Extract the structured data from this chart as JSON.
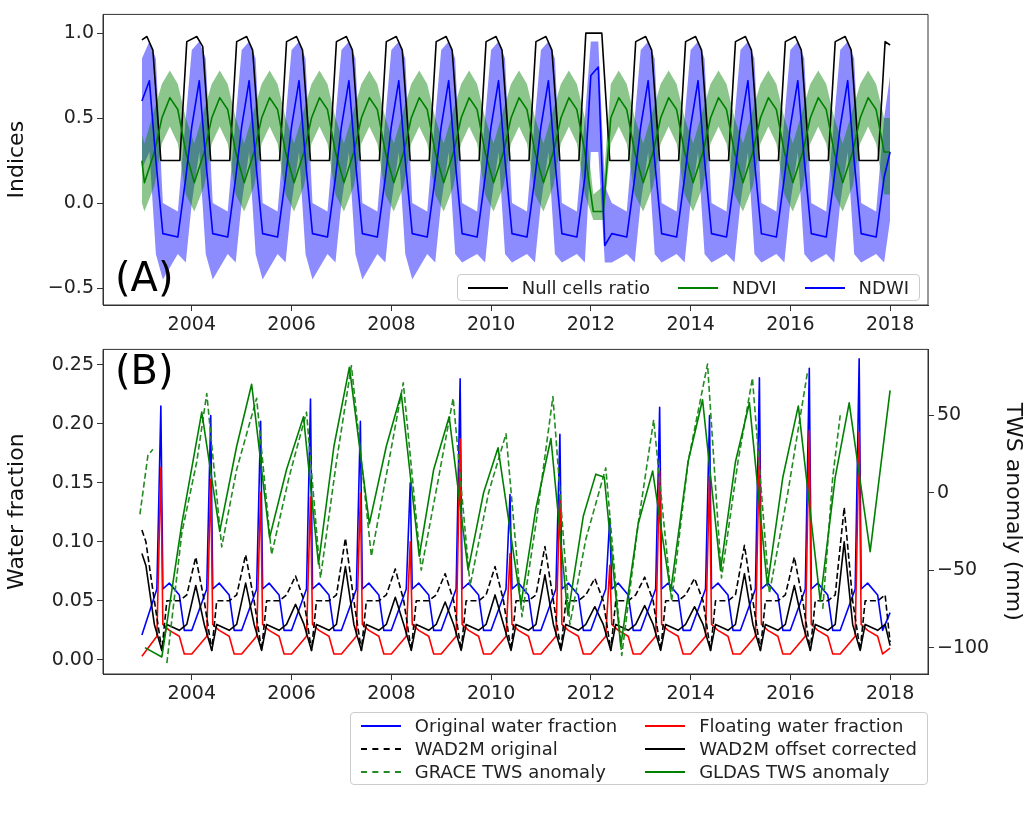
{
  "chart_data": [
    {
      "type": "line",
      "ylabel": "Indices",
      "xlim": [
        2002.22,
        2018.76
      ],
      "ylim": [
        -0.6,
        1.11
      ],
      "xticks": [
        2004,
        2006,
        2008,
        2010,
        2012,
        2014,
        2016,
        2018
      ],
      "yticks": [
        {
          "value": -0.5,
          "label": "−0.5"
        },
        {
          "value": 0,
          "label": "0.0"
        },
        {
          "value": 0.5,
          "label": "0.5"
        },
        {
          "value": 1,
          "label": "1.0"
        }
      ],
      "legend": "lower right",
      "annotations": [
        "(A)"
      ],
      "series": [
        {
          "name": "Null cells ratio",
          "color": "#000000",
          "x": [
            2003,
            2003.1,
            2003.22,
            2003.38,
            2003.76,
            2003.9,
            2004.1,
            2004.22,
            2004.38,
            2004.76,
            2004.9,
            2005.1,
            2005.22,
            2005.38,
            2005.76,
            2005.9,
            2006.1,
            2006.22,
            2006.38,
            2006.76,
            2006.9,
            2007.1,
            2007.22,
            2007.38,
            2007.76,
            2007.9,
            2008.1,
            2008.22,
            2008.38,
            2008.76,
            2008.9,
            2009.1,
            2009.22,
            2009.38,
            2009.76,
            2009.9,
            2010.1,
            2010.22,
            2010.38,
            2010.76,
            2010.9,
            2011.1,
            2011.22,
            2011.38,
            2011.76,
            2011.9,
            2012.1,
            2012.22,
            2012.38,
            2012.76,
            2012.9,
            2013.1,
            2013.22,
            2013.38,
            2013.76,
            2013.9,
            2014.1,
            2014.22,
            2014.38,
            2014.76,
            2014.9,
            2015.1,
            2015.22,
            2015.38,
            2015.76,
            2015.9,
            2016.1,
            2016.22,
            2016.38,
            2016.76,
            2016.9,
            2017.1,
            2017.22,
            2017.38,
            2017.76,
            2017.9,
            2018
          ],
          "values": [
            0.96,
            0.98,
            0.9,
            0.25,
            0.25,
            0.95,
            0.98,
            0.92,
            0.25,
            0.25,
            0.95,
            0.98,
            0.9,
            0.25,
            0.25,
            0.95,
            0.98,
            0.9,
            0.25,
            0.25,
            0.95,
            0.98,
            0.9,
            0.25,
            0.25,
            0.95,
            0.98,
            0.9,
            0.25,
            0.25,
            0.95,
            0.98,
            0.9,
            0.25,
            0.25,
            0.95,
            0.98,
            0.9,
            0.25,
            0.25,
            0.95,
            0.98,
            0.9,
            0.25,
            0.25,
            1.0,
            1.0,
            1.0,
            0.25,
            0.25,
            0.95,
            0.98,
            0.9,
            0.25,
            0.25,
            0.95,
            0.98,
            0.9,
            0.25,
            0.25,
            0.95,
            0.98,
            0.9,
            0.25,
            0.25,
            0.95,
            0.98,
            0.9,
            0.25,
            0.25,
            0.95,
            0.98,
            0.9,
            0.25,
            0.25,
            0.95,
            0.93
          ]
        },
        {
          "name": "NDVI",
          "color": "#008000",
          "x": [
            2003,
            2003.05,
            2003.25,
            2003.4,
            2003.56,
            2003.72,
            2003.88,
            2004.05,
            2004.25,
            2004.4,
            2004.56,
            2004.72,
            2004.88,
            2005.05,
            2005.25,
            2005.4,
            2005.56,
            2005.72,
            2005.88,
            2006.05,
            2006.25,
            2006.4,
            2006.56,
            2006.72,
            2006.88,
            2007.05,
            2007.25,
            2007.4,
            2007.56,
            2007.72,
            2007.88,
            2008.05,
            2008.25,
            2008.4,
            2008.56,
            2008.72,
            2008.88,
            2009.05,
            2009.25,
            2009.4,
            2009.56,
            2009.72,
            2009.88,
            2010.05,
            2010.25,
            2010.4,
            2010.56,
            2010.72,
            2010.88,
            2011.05,
            2011.25,
            2011.4,
            2011.56,
            2011.72,
            2011.88,
            2012.05,
            2012.25,
            2012.4,
            2012.56,
            2012.72,
            2012.88,
            2013.05,
            2013.25,
            2013.4,
            2013.56,
            2013.72,
            2013.88,
            2014.05,
            2014.25,
            2014.4,
            2014.56,
            2014.72,
            2014.88,
            2015.05,
            2015.25,
            2015.4,
            2015.56,
            2015.72,
            2015.88,
            2016.05,
            2016.25,
            2016.4,
            2016.56,
            2016.72,
            2016.88,
            2017.05,
            2017.25,
            2017.4,
            2017.56,
            2017.72,
            2017.88,
            2018
          ],
          "values": [
            0.25,
            0.12,
            0.3,
            0.5,
            0.62,
            0.55,
            0.3,
            0.12,
            0.3,
            0.5,
            0.62,
            0.55,
            0.3,
            0.12,
            0.3,
            0.5,
            0.62,
            0.55,
            0.3,
            0.12,
            0.3,
            0.5,
            0.62,
            0.55,
            0.3,
            0.12,
            0.3,
            0.5,
            0.62,
            0.55,
            0.3,
            0.12,
            0.3,
            0.5,
            0.62,
            0.55,
            0.3,
            0.12,
            0.3,
            0.5,
            0.62,
            0.55,
            0.3,
            0.12,
            0.3,
            0.5,
            0.62,
            0.55,
            0.3,
            0.12,
            0.3,
            0.5,
            0.62,
            0.55,
            0.3,
            -0.05,
            -0.05,
            0.5,
            0.62,
            0.55,
            0.3,
            0.12,
            0.3,
            0.5,
            0.62,
            0.55,
            0.3,
            0.12,
            0.3,
            0.5,
            0.62,
            0.55,
            0.3,
            0.12,
            0.3,
            0.5,
            0.62,
            0.55,
            0.3,
            0.12,
            0.3,
            0.5,
            0.62,
            0.55,
            0.3,
            0.12,
            0.3,
            0.5,
            0.62,
            0.55,
            0.3,
            0.3
          ],
          "lower": [
            0.0,
            -0.05,
            0.1,
            0.35,
            0.45,
            0.35,
            0.05,
            -0.05,
            0.1,
            0.35,
            0.45,
            0.35,
            0.05,
            -0.05,
            0.1,
            0.35,
            0.45,
            0.35,
            0.05,
            -0.05,
            0.1,
            0.35,
            0.45,
            0.35,
            0.05,
            -0.05,
            0.1,
            0.35,
            0.45,
            0.35,
            0.05,
            -0.05,
            0.1,
            0.35,
            0.45,
            0.35,
            0.05,
            -0.05,
            0.1,
            0.35,
            0.45,
            0.35,
            0.05,
            -0.05,
            0.1,
            0.35,
            0.45,
            0.35,
            0.05,
            -0.05,
            0.1,
            0.35,
            0.45,
            0.35,
            0.05,
            -0.1,
            -0.1,
            0.35,
            0.45,
            0.35,
            0.05,
            -0.05,
            0.1,
            0.35,
            0.45,
            0.35,
            0.05,
            -0.05,
            0.1,
            0.35,
            0.45,
            0.35,
            0.05,
            -0.05,
            0.1,
            0.35,
            0.45,
            0.35,
            0.05,
            -0.05,
            0.1,
            0.35,
            0.45,
            0.35,
            0.05,
            -0.05,
            0.1,
            0.35,
            0.45,
            0.35,
            0.05,
            0.05
          ],
          "upper": [
            0.4,
            0.35,
            0.55,
            0.7,
            0.78,
            0.7,
            0.5,
            0.35,
            0.55,
            0.7,
            0.78,
            0.7,
            0.5,
            0.35,
            0.55,
            0.7,
            0.78,
            0.7,
            0.5,
            0.35,
            0.55,
            0.7,
            0.78,
            0.7,
            0.5,
            0.35,
            0.55,
            0.7,
            0.78,
            0.7,
            0.5,
            0.35,
            0.55,
            0.7,
            0.78,
            0.7,
            0.5,
            0.35,
            0.55,
            0.7,
            0.78,
            0.7,
            0.5,
            0.35,
            0.55,
            0.7,
            0.78,
            0.7,
            0.5,
            0.35,
            0.55,
            0.7,
            0.78,
            0.7,
            0.5,
            0.05,
            0.1,
            0.7,
            0.78,
            0.7,
            0.5,
            0.35,
            0.55,
            0.7,
            0.78,
            0.7,
            0.5,
            0.35,
            0.55,
            0.7,
            0.78,
            0.7,
            0.5,
            0.35,
            0.55,
            0.7,
            0.78,
            0.7,
            0.5,
            0.35,
            0.55,
            0.7,
            0.78,
            0.7,
            0.5,
            0.35,
            0.55,
            0.7,
            0.78,
            0.7,
            0.5,
            0.5
          ]
        },
        {
          "name": "NDWI",
          "color": "#0000ff",
          "x": [
            2003,
            2003.15,
            2003.28,
            2003.42,
            2003.72,
            2003.88,
            2004,
            2004.15,
            2004.28,
            2004.42,
            2004.72,
            2004.88,
            2005,
            2005.15,
            2005.28,
            2005.42,
            2005.72,
            2005.88,
            2006,
            2006.15,
            2006.28,
            2006.42,
            2006.72,
            2006.88,
            2007,
            2007.15,
            2007.28,
            2007.42,
            2007.72,
            2007.88,
            2008,
            2008.15,
            2008.28,
            2008.42,
            2008.72,
            2008.88,
            2009,
            2009.15,
            2009.28,
            2009.42,
            2009.72,
            2009.88,
            2010,
            2010.15,
            2010.28,
            2010.42,
            2010.72,
            2010.88,
            2011,
            2011.15,
            2011.28,
            2011.42,
            2011.72,
            2011.88,
            2012,
            2012.15,
            2012.28,
            2012.42,
            2012.72,
            2012.88,
            2013,
            2013.15,
            2013.28,
            2013.42,
            2013.72,
            2013.88,
            2014,
            2014.15,
            2014.28,
            2014.42,
            2014.72,
            2014.88,
            2015,
            2015.15,
            2015.28,
            2015.42,
            2015.72,
            2015.88,
            2016,
            2016.15,
            2016.28,
            2016.42,
            2016.72,
            2016.88,
            2017,
            2017.15,
            2017.28,
            2017.42,
            2017.72,
            2017.88,
            2018
          ],
          "values": [
            0.6,
            0.72,
            0.25,
            -0.18,
            -0.2,
            0.15,
            0.45,
            0.72,
            0.25,
            -0.18,
            -0.2,
            0.15,
            0.45,
            0.72,
            0.25,
            -0.18,
            -0.2,
            0.15,
            0.45,
            0.72,
            0.25,
            -0.18,
            -0.2,
            0.15,
            0.45,
            0.72,
            0.25,
            -0.18,
            -0.2,
            0.15,
            0.45,
            0.72,
            0.25,
            -0.18,
            -0.2,
            0.15,
            0.45,
            0.72,
            0.25,
            -0.18,
            -0.2,
            0.15,
            0.45,
            0.72,
            0.25,
            -0.18,
            -0.2,
            0.15,
            0.45,
            0.72,
            0.25,
            -0.18,
            -0.2,
            0.15,
            0.75,
            0.8,
            -0.25,
            -0.18,
            -0.2,
            0.15,
            0.45,
            0.72,
            0.25,
            -0.18,
            -0.2,
            0.15,
            0.45,
            0.72,
            0.25,
            -0.18,
            -0.2,
            0.15,
            0.45,
            0.72,
            0.25,
            -0.18,
            -0.2,
            0.15,
            0.45,
            0.72,
            0.25,
            -0.18,
            -0.2,
            0.15,
            0.45,
            0.72,
            0.25,
            -0.18,
            -0.2,
            0.15,
            0.3
          ],
          "lower": [
            0.2,
            0.3,
            -0.3,
            -0.45,
            -0.3,
            -0.35,
            0.0,
            0.3,
            -0.3,
            -0.45,
            -0.3,
            -0.35,
            0.0,
            0.3,
            -0.3,
            -0.45,
            -0.3,
            -0.35,
            0.0,
            0.3,
            -0.3,
            -0.45,
            -0.3,
            -0.35,
            0.0,
            0.3,
            -0.3,
            -0.45,
            -0.3,
            -0.35,
            0.0,
            0.3,
            -0.3,
            -0.45,
            -0.3,
            -0.35,
            0.0,
            0.3,
            -0.3,
            -0.35,
            -0.3,
            -0.35,
            0.0,
            0.3,
            -0.3,
            -0.35,
            -0.3,
            -0.35,
            0.0,
            0.3,
            -0.3,
            -0.35,
            -0.3,
            -0.35,
            0.3,
            0.3,
            -0.35,
            -0.35,
            -0.3,
            -0.35,
            0.0,
            0.3,
            -0.3,
            -0.35,
            -0.3,
            -0.35,
            0.0,
            0.3,
            -0.3,
            -0.35,
            -0.3,
            -0.35,
            0.0,
            0.3,
            -0.3,
            -0.35,
            -0.3,
            -0.35,
            0.0,
            0.3,
            -0.3,
            -0.35,
            -0.3,
            -0.35,
            0.0,
            0.3,
            -0.3,
            -0.35,
            -0.3,
            -0.35,
            -0.1
          ],
          "upper": [
            0.85,
            0.95,
            0.85,
            0.0,
            -0.05,
            0.5,
            0.9,
            0.95,
            0.85,
            0.0,
            -0.05,
            0.5,
            0.9,
            0.95,
            0.85,
            0.0,
            -0.05,
            0.5,
            0.9,
            0.95,
            0.85,
            0.0,
            -0.05,
            0.5,
            0.9,
            0.95,
            0.85,
            0.0,
            -0.05,
            0.5,
            0.9,
            0.95,
            0.85,
            0.0,
            -0.05,
            0.5,
            0.9,
            0.95,
            0.85,
            0.0,
            -0.05,
            0.5,
            0.9,
            0.95,
            0.85,
            0.0,
            -0.05,
            0.5,
            0.9,
            0.95,
            0.85,
            0.0,
            -0.05,
            0.5,
            0.95,
            0.95,
            0.1,
            0.0,
            -0.05,
            0.5,
            0.9,
            0.95,
            0.85,
            0.0,
            -0.05,
            0.5,
            0.9,
            0.95,
            0.85,
            0.0,
            -0.05,
            0.5,
            0.9,
            0.95,
            0.85,
            0.0,
            -0.05,
            0.5,
            0.9,
            0.95,
            0.85,
            0.0,
            -0.05,
            0.5,
            0.9,
            0.95,
            0.85,
            0.0,
            -0.05,
            0.5,
            0.75
          ]
        }
      ]
    },
    {
      "type": "line",
      "ylabel": "Water fraction",
      "y2label": "TWS anomaly (mm)",
      "xlim": [
        2002.22,
        2018.76
      ],
      "ylim": [
        -0.012,
        0.263
      ],
      "y2lim": [
        -117,
        92.5
      ],
      "xticks": [
        2004,
        2006,
        2008,
        2010,
        2012,
        2014,
        2016,
        2018
      ],
      "yticks": [
        {
          "value": 0,
          "label": "0.00"
        },
        {
          "value": 0.05,
          "label": "0.05"
        },
        {
          "value": 0.1,
          "label": "0.10"
        },
        {
          "value": 0.15,
          "label": "0.15"
        },
        {
          "value": 0.2,
          "label": "0.20"
        },
        {
          "value": 0.25,
          "label": "0.25"
        }
      ],
      "y2ticks": [
        {
          "value": -100,
          "label": "−100"
        },
        {
          "value": -50,
          "label": "−50"
        },
        0,
        50
      ],
      "legend": "bottom",
      "annotations": [
        "(B)"
      ],
      "series": [
        {
          "name": "Original water fraction",
          "color": "#0000ff",
          "x": [
            2003,
            2003.3,
            2003.38,
            2003.42,
            2003.55,
            2003.75,
            2003.85,
            2004,
            2004.3,
            2004.38,
            2004.42,
            2004.55,
            2004.75,
            2004.85,
            2005,
            2005.3,
            2005.38,
            2005.42,
            2005.55,
            2005.75,
            2005.85,
            2006,
            2006.3,
            2006.38,
            2006.42,
            2006.55,
            2006.75,
            2006.85,
            2007,
            2007.3,
            2007.38,
            2007.42,
            2007.55,
            2007.75,
            2007.85,
            2008,
            2008.3,
            2008.38,
            2008.42,
            2008.55,
            2008.75,
            2008.85,
            2009,
            2009.3,
            2009.38,
            2009.42,
            2009.55,
            2009.75,
            2009.85,
            2010,
            2010.3,
            2010.38,
            2010.42,
            2010.55,
            2010.75,
            2010.85,
            2011,
            2011.3,
            2011.38,
            2011.42,
            2011.55,
            2011.75,
            2011.85,
            2012,
            2012.3,
            2012.38,
            2012.42,
            2012.55,
            2012.75,
            2012.85,
            2013,
            2013.3,
            2013.38,
            2013.42,
            2013.55,
            2013.75,
            2013.85,
            2014,
            2014.3,
            2014.38,
            2014.42,
            2014.55,
            2014.75,
            2014.85,
            2015,
            2015.3,
            2015.38,
            2015.42,
            2015.55,
            2015.75,
            2015.85,
            2016,
            2016.3,
            2016.38,
            2016.42,
            2016.55,
            2016.75,
            2016.85,
            2017,
            2017.3,
            2017.38,
            2017.42,
            2017.55,
            2017.75,
            2017.85,
            2018
          ],
          "values": [
            0.021,
            0.06,
            0.215,
            0.06,
            0.065,
            0.055,
            0.025,
            0.025,
            0.06,
            0.207,
            0.06,
            0.065,
            0.055,
            0.025,
            0.025,
            0.06,
            0.202,
            0.06,
            0.065,
            0.055,
            0.025,
            0.025,
            0.06,
            0.221,
            0.06,
            0.065,
            0.055,
            0.025,
            0.025,
            0.06,
            0.202,
            0.06,
            0.065,
            0.055,
            0.025,
            0.025,
            0.06,
            0.15,
            0.06,
            0.065,
            0.055,
            0.025,
            0.025,
            0.06,
            0.238,
            0.06,
            0.065,
            0.055,
            0.025,
            0.025,
            0.06,
            0.14,
            0.06,
            0.065,
            0.055,
            0.025,
            0.025,
            0.06,
            0.191,
            0.06,
            0.065,
            0.055,
            0.025,
            0.025,
            0.06,
            0.12,
            0.06,
            0.065,
            0.055,
            0.025,
            0.025,
            0.06,
            0.214,
            0.06,
            0.065,
            0.055,
            0.025,
            0.025,
            0.06,
            0.207,
            0.06,
            0.065,
            0.055,
            0.025,
            0.025,
            0.06,
            0.239,
            0.06,
            0.065,
            0.055,
            0.025,
            0.025,
            0.06,
            0.247,
            0.06,
            0.065,
            0.055,
            0.025,
            0.025,
            0.06,
            0.255,
            0.06,
            0.065,
            0.055,
            0.025,
            0.04
          ]
        },
        {
          "name": "Floating water fraction",
          "color": "#ff0000",
          "x": [
            2003,
            2003.3,
            2003.38,
            2003.42,
            2003.55,
            2003.75,
            2003.85,
            2004,
            2004.3,
            2004.38,
            2004.42,
            2004.55,
            2004.75,
            2004.85,
            2005,
            2005.3,
            2005.38,
            2005.42,
            2005.55,
            2005.75,
            2005.85,
            2006,
            2006.3,
            2006.38,
            2006.42,
            2006.55,
            2006.75,
            2006.85,
            2007,
            2007.3,
            2007.38,
            2007.42,
            2007.55,
            2007.75,
            2007.85,
            2008,
            2008.3,
            2008.38,
            2008.42,
            2008.55,
            2008.75,
            2008.85,
            2009,
            2009.3,
            2009.38,
            2009.42,
            2009.55,
            2009.75,
            2009.85,
            2010,
            2010.3,
            2010.38,
            2010.42,
            2010.55,
            2010.75,
            2010.85,
            2011,
            2011.3,
            2011.38,
            2011.42,
            2011.55,
            2011.75,
            2011.85,
            2012,
            2012.3,
            2012.38,
            2012.42,
            2012.55,
            2012.75,
            2012.85,
            2013,
            2013.3,
            2013.38,
            2013.42,
            2013.55,
            2013.75,
            2013.85,
            2014,
            2014.3,
            2014.38,
            2014.42,
            2014.55,
            2014.75,
            2014.85,
            2015,
            2015.3,
            2015.38,
            2015.42,
            2015.55,
            2015.75,
            2015.85,
            2016,
            2016.3,
            2016.38,
            2016.42,
            2016.55,
            2016.75,
            2016.85,
            2017,
            2017.3,
            2017.38,
            2017.42,
            2017.55,
            2017.75,
            2017.85,
            2018
          ],
          "values": [
            0.003,
            0.02,
            0.163,
            0.03,
            0.025,
            0.02,
            0.005,
            0.005,
            0.02,
            0.153,
            0.03,
            0.025,
            0.02,
            0.005,
            0.005,
            0.02,
            0.142,
            0.03,
            0.025,
            0.02,
            0.005,
            0.005,
            0.02,
            0.138,
            0.03,
            0.025,
            0.02,
            0.005,
            0.005,
            0.02,
            0.141,
            0.03,
            0.025,
            0.02,
            0.005,
            0.005,
            0.02,
            0.1,
            0.03,
            0.025,
            0.02,
            0.005,
            0.005,
            0.02,
            0.187,
            0.03,
            0.025,
            0.02,
            0.005,
            0.005,
            0.02,
            0.09,
            0.03,
            0.025,
            0.02,
            0.005,
            0.005,
            0.02,
            0.14,
            0.03,
            0.025,
            0.02,
            0.005,
            0.005,
            0.02,
            0.08,
            0.03,
            0.025,
            0.02,
            0.005,
            0.005,
            0.02,
            0.16,
            0.03,
            0.025,
            0.02,
            0.005,
            0.005,
            0.02,
            0.155,
            0.03,
            0.025,
            0.02,
            0.005,
            0.005,
            0.02,
            0.178,
            0.03,
            0.025,
            0.02,
            0.005,
            0.005,
            0.02,
            0.194,
            0.03,
            0.025,
            0.02,
            0.005,
            0.005,
            0.02,
            0.193,
            0.03,
            0.025,
            0.02,
            0.005,
            0.01
          ]
        },
        {
          "name": "WAD2M original",
          "color": "#000000",
          "line_style": "dashed",
          "x": [
            2003,
            2003.08,
            2003.25,
            2003.4,
            2003.5,
            2003.75,
            2003.9,
            2004.08,
            2004.25,
            2004.4,
            2004.5,
            2004.75,
            2004.9,
            2005.08,
            2005.25,
            2005.4,
            2005.5,
            2005.75,
            2005.9,
            2006.08,
            2006.25,
            2006.4,
            2006.5,
            2006.75,
            2006.9,
            2007.08,
            2007.25,
            2007.4,
            2007.5,
            2007.75,
            2007.9,
            2008.08,
            2008.25,
            2008.4,
            2008.5,
            2008.75,
            2008.9,
            2009.08,
            2009.25,
            2009.4,
            2009.5,
            2009.75,
            2009.9,
            2010.08,
            2010.25,
            2010.4,
            2010.5,
            2010.75,
            2010.9,
            2011.08,
            2011.25,
            2011.4,
            2011.5,
            2011.75,
            2011.9,
            2012.08,
            2012.25,
            2012.4,
            2012.5,
            2012.75,
            2012.9,
            2013.08,
            2013.25,
            2013.4,
            2013.5,
            2013.75,
            2013.9,
            2014.08,
            2014.25,
            2014.4,
            2014.5,
            2014.75,
            2014.9,
            2015.08,
            2015.25,
            2015.4,
            2015.5,
            2015.75,
            2015.9,
            2016.08,
            2016.25,
            2016.4,
            2016.5,
            2016.75,
            2016.9,
            2017.08,
            2017.25,
            2017.4,
            2017.5,
            2017.75,
            2017.9,
            2018
          ],
          "values": [
            0.11,
            0.1,
            0.05,
            0.008,
            0.05,
            0.05,
            0.055,
            0.087,
            0.05,
            0.008,
            0.05,
            0.05,
            0.055,
            0.089,
            0.05,
            0.008,
            0.05,
            0.05,
            0.055,
            0.071,
            0.05,
            0.008,
            0.05,
            0.05,
            0.055,
            0.103,
            0.05,
            0.008,
            0.05,
            0.05,
            0.055,
            0.077,
            0.05,
            0.008,
            0.05,
            0.05,
            0.055,
            0.073,
            0.05,
            0.008,
            0.05,
            0.05,
            0.055,
            0.079,
            0.05,
            0.008,
            0.05,
            0.05,
            0.055,
            0.096,
            0.05,
            0.008,
            0.05,
            0.05,
            0.055,
            0.069,
            0.05,
            0.008,
            0.05,
            0.05,
            0.055,
            0.07,
            0.05,
            0.008,
            0.05,
            0.05,
            0.055,
            0.069,
            0.05,
            0.008,
            0.05,
            0.05,
            0.055,
            0.097,
            0.05,
            0.008,
            0.05,
            0.05,
            0.055,
            0.087,
            0.05,
            0.008,
            0.05,
            0.05,
            0.055,
            0.129,
            0.05,
            0.008,
            0.05,
            0.05,
            0.055,
            0.015
          ]
        },
        {
          "name": "WAD2M offset corrected",
          "color": "#000000",
          "x": [
            2003,
            2003.08,
            2003.25,
            2003.4,
            2003.5,
            2003.75,
            2003.9,
            2004.08,
            2004.25,
            2004.4,
            2004.5,
            2004.75,
            2004.9,
            2005.08,
            2005.25,
            2005.4,
            2005.5,
            2005.75,
            2005.9,
            2006.08,
            2006.25,
            2006.4,
            2006.5,
            2006.75,
            2006.9,
            2007.08,
            2007.25,
            2007.4,
            2007.5,
            2007.75,
            2007.9,
            2008.08,
            2008.25,
            2008.4,
            2008.5,
            2008.75,
            2008.9,
            2009.08,
            2009.25,
            2009.4,
            2009.5,
            2009.75,
            2009.9,
            2010.08,
            2010.25,
            2010.4,
            2010.5,
            2010.75,
            2010.9,
            2011.08,
            2011.25,
            2011.4,
            2011.5,
            2011.75,
            2011.9,
            2012.08,
            2012.25,
            2012.4,
            2012.5,
            2012.75,
            2012.9,
            2013.08,
            2013.25,
            2013.4,
            2013.5,
            2013.75,
            2013.9,
            2014.08,
            2014.25,
            2014.4,
            2014.5,
            2014.75,
            2014.9,
            2015.08,
            2015.25,
            2015.4,
            2015.5,
            2015.75,
            2015.9,
            2016.08,
            2016.25,
            2016.4,
            2016.5,
            2016.75,
            2016.9,
            2017.08,
            2017.25,
            2017.4,
            2017.5,
            2017.75,
            2017.9,
            2018
          ],
          "values": [
            0.09,
            0.08,
            0.03,
            0.008,
            0.03,
            0.025,
            0.03,
            0.063,
            0.03,
            0.008,
            0.03,
            0.025,
            0.03,
            0.065,
            0.03,
            0.008,
            0.03,
            0.025,
            0.03,
            0.047,
            0.03,
            0.008,
            0.03,
            0.025,
            0.03,
            0.079,
            0.03,
            0.008,
            0.03,
            0.025,
            0.03,
            0.053,
            0.03,
            0.008,
            0.03,
            0.025,
            0.03,
            0.049,
            0.03,
            0.008,
            0.03,
            0.025,
            0.03,
            0.055,
            0.03,
            0.008,
            0.03,
            0.025,
            0.03,
            0.072,
            0.03,
            0.008,
            0.03,
            0.025,
            0.03,
            0.045,
            0.03,
            0.008,
            0.03,
            0.025,
            0.03,
            0.046,
            0.03,
            0.008,
            0.03,
            0.025,
            0.03,
            0.045,
            0.03,
            0.008,
            0.03,
            0.025,
            0.03,
            0.073,
            0.03,
            0.008,
            0.03,
            0.025,
            0.03,
            0.063,
            0.03,
            0.008,
            0.03,
            0.025,
            0.03,
            0.1,
            0.03,
            0.008,
            0.03,
            0.025,
            0.03,
            0.012
          ]
        },
        {
          "name": "GRACE TWS anomaly",
          "color": "#228b22",
          "line_style": "dashed",
          "axis": "y2",
          "x": [
            2002.96,
            2003.12,
            2003.22,
            2003.3,
            2003.5,
            2003.8,
            2004.1,
            2004.3,
            2004.6,
            2004.9,
            2005.3,
            2005.6,
            2005.95,
            2006.3,
            2006.58,
            2006.9,
            2007.2,
            2007.6,
            2007.95,
            2008.24,
            2008.6,
            2008.95,
            2009.24,
            2009.58,
            2009.95,
            2010.3,
            2010.62,
            2010.9,
            2011.24,
            2011.58,
            2011.9,
            2012.3,
            2012.62,
            2012.95,
            2013.26,
            2013.62,
            2013.95,
            2014.34,
            2014.62,
            2014.95,
            2015.24,
            2015.58,
            2015.95,
            2016.34,
            2016.45,
            2016.65,
            2016.85,
            2017.0
          ],
          "values": [
            -14,
            24,
            28,
            null,
            -110,
            -26,
            20,
            64,
            -35,
            15,
            61,
            -40,
            10,
            52,
            -55,
            20,
            82,
            -41,
            20,
            71,
            -50,
            10,
            61,
            -60,
            0,
            38,
            -80,
            -20,
            62,
            -85,
            -30,
            16,
            -105,
            -20,
            47,
            -70,
            20,
            83,
            -55,
            20,
            74,
            -65,
            0,
            77,
            null,
            -75,
            10,
            50
          ]
        },
        {
          "name": "GLDAS TWS anomaly",
          "color": "#008000",
          "axis": "y2",
          "x": [
            2003.06,
            2003.4,
            2003.8,
            2004.2,
            2004.56,
            2004.9,
            2005.2,
            2005.56,
            2005.9,
            2006.24,
            2006.54,
            2006.85,
            2007.16,
            2007.56,
            2007.9,
            2008.2,
            2008.56,
            2008.85,
            2009.16,
            2009.54,
            2009.85,
            2010.14,
            2010.6,
            2010.9,
            2011.2,
            2011.54,
            2011.85,
            2012.1,
            2012.27,
            2012.6,
            2012.95,
            2013.24,
            2013.6,
            2013.95,
            2014.24,
            2014.6,
            2014.9,
            2015.18,
            2015.54,
            2015.85,
            2016.16,
            2016.6,
            2016.9,
            2017.18,
            2017.6,
            2018.0
          ],
          "values": [
            -100,
            -106,
            -20,
            52,
            -25,
            30,
            70,
            -29,
            15,
            49,
            -46,
            30,
            81,
            -20,
            30,
            64,
            -41,
            15,
            49,
            -50,
            0,
            29,
            -72,
            -10,
            35,
            -79,
            -15,
            12,
            10,
            -99,
            -20,
            14,
            -64,
            20,
            60,
            -50,
            20,
            58,
            -60,
            10,
            56,
            -70,
            10,
            58,
            -38,
            66
          ]
        }
      ]
    }
  ]
}
